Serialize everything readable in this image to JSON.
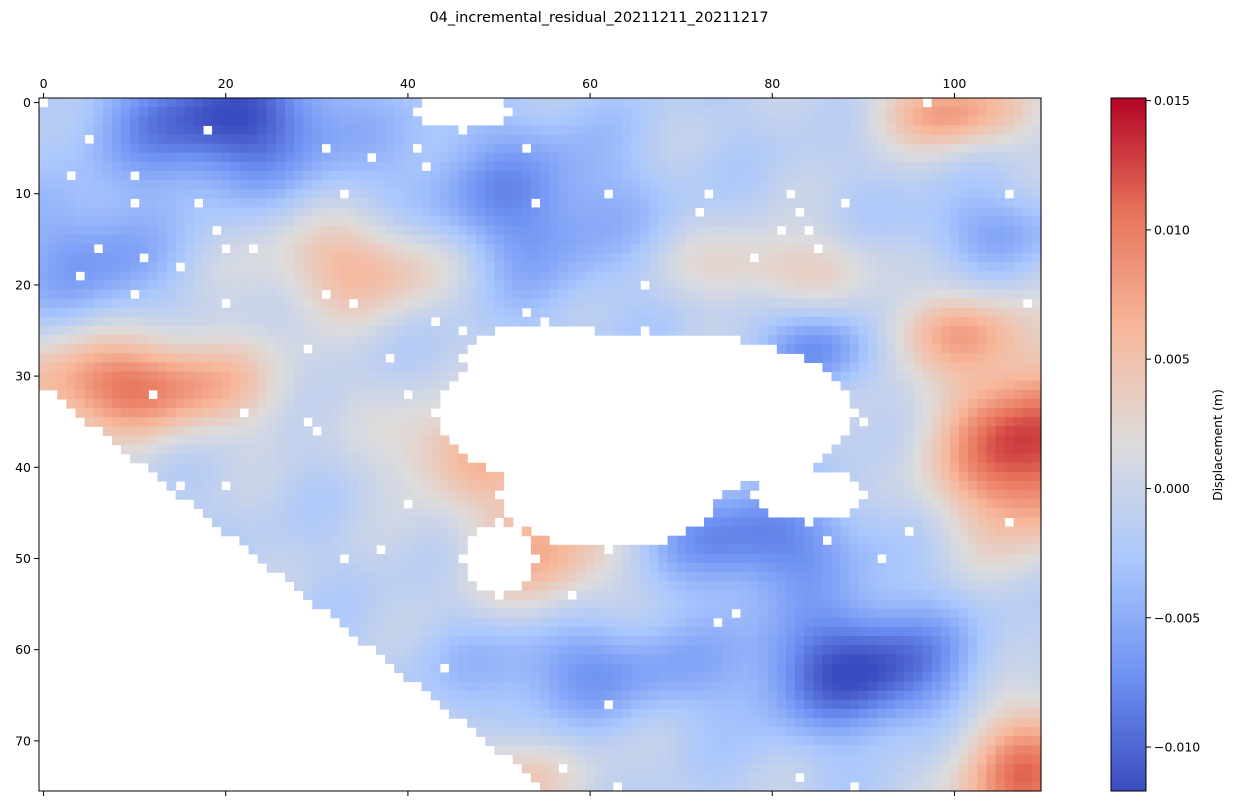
{
  "chart_data": {
    "type": "heatmap",
    "title": "04_incremental_residual_20211211_20211217",
    "xlabel": "",
    "ylabel": "",
    "x_ticks": [
      0,
      20,
      40,
      60,
      80,
      100
    ],
    "y_ticks": [
      0,
      10,
      20,
      30,
      40,
      50,
      60,
      70
    ],
    "xlim": [
      -0.5,
      109.5
    ],
    "ylim": [
      75.5,
      -0.5
    ],
    "x_tick_position": "top",
    "grid": false,
    "colormap": "coolwarm",
    "colormap_stops": [
      "#3b4cc0",
      "#6f92f3",
      "#aac7fd",
      "#dddcdc",
      "#f7b89c",
      "#e7745b",
      "#b40426"
    ],
    "missing_color": "#ffffff",
    "colorbar": {
      "label": "Displacement (m)",
      "vmin": -0.0117,
      "vmax": 0.0151,
      "ticks": [
        -0.01,
        -0.005,
        0.0,
        0.005,
        0.01,
        0.015
      ],
      "tick_labels": [
        "−0.010",
        "−0.005",
        "0.000",
        "0.005",
        "0.010",
        "0.015"
      ]
    },
    "grid_shape": [
      76,
      110
    ],
    "features": [
      {
        "x": 20,
        "y": 2,
        "value": -0.0105,
        "spread_x": 9,
        "spread_y": 5
      },
      {
        "x": 52,
        "y": 12,
        "value": -0.0065,
        "spread_x": 9,
        "spread_y": 7
      },
      {
        "x": 5,
        "y": 17,
        "value": -0.0055,
        "spread_x": 6,
        "spread_y": 5
      },
      {
        "x": 36,
        "y": 18,
        "value": 0.008,
        "spread_x": 8,
        "spread_y": 4
      },
      {
        "x": 10,
        "y": 31,
        "value": 0.0115,
        "spread_x": 10,
        "spread_y": 4
      },
      {
        "x": 100,
        "y": 1,
        "value": 0.009,
        "spread_x": 6,
        "spread_y": 3
      },
      {
        "x": 108,
        "y": 38,
        "value": 0.0145,
        "spread_x": 7,
        "spread_y": 7
      },
      {
        "x": 90,
        "y": 62,
        "value": -0.0105,
        "spread_x": 8,
        "spread_y": 5
      },
      {
        "x": 108,
        "y": 74,
        "value": 0.0115,
        "spread_x": 6,
        "spread_y": 6
      },
      {
        "x": 55,
        "y": 49,
        "value": 0.008,
        "spread_x": 6,
        "spread_y": 5
      },
      {
        "x": 46,
        "y": 38,
        "value": 0.007,
        "spread_x": 6,
        "spread_y": 4
      },
      {
        "x": 78,
        "y": 48,
        "value": -0.0075,
        "spread_x": 8,
        "spread_y": 4
      },
      {
        "x": 60,
        "y": 62,
        "value": -0.0055,
        "spread_x": 10,
        "spread_y": 4
      },
      {
        "x": 85,
        "y": 27,
        "value": -0.0065,
        "spread_x": 4,
        "spread_y": 3
      },
      {
        "x": 100,
        "y": 25,
        "value": 0.0065,
        "spread_x": 6,
        "spread_y": 3
      },
      {
        "x": 80,
        "y": 18,
        "value": 0.005,
        "spread_x": 8,
        "spread_y": 3
      },
      {
        "x": 48,
        "y": 74,
        "value": 0.006,
        "spread_x": 8,
        "spread_y": 3
      },
      {
        "x": 104,
        "y": 14,
        "value": -0.004,
        "spread_x": 6,
        "spread_y": 3
      }
    ],
    "missing_regions": [
      {
        "shape": "ellipse",
        "cx": 66,
        "cy": 34,
        "rx": 23,
        "ry": 9
      },
      {
        "shape": "ellipse",
        "cx": 55,
        "cy": 28,
        "rx": 9,
        "ry": 4
      },
      {
        "shape": "ellipse",
        "cx": 62,
        "cy": 43,
        "rx": 12,
        "ry": 6
      },
      {
        "shape": "ellipse",
        "cx": 50,
        "cy": 50,
        "rx": 4,
        "ry": 4
      },
      {
        "shape": "ellipse",
        "cx": 46,
        "cy": 1,
        "rx": 5,
        "ry": 2
      },
      {
        "shape": "ellipse",
        "cx": 84,
        "cy": 43,
        "rx": 6,
        "ry": 3
      },
      {
        "shape": "lower_left_wedge",
        "row_start": 31,
        "col_start": 0,
        "row_end": 75,
        "col_end": 55
      }
    ]
  }
}
